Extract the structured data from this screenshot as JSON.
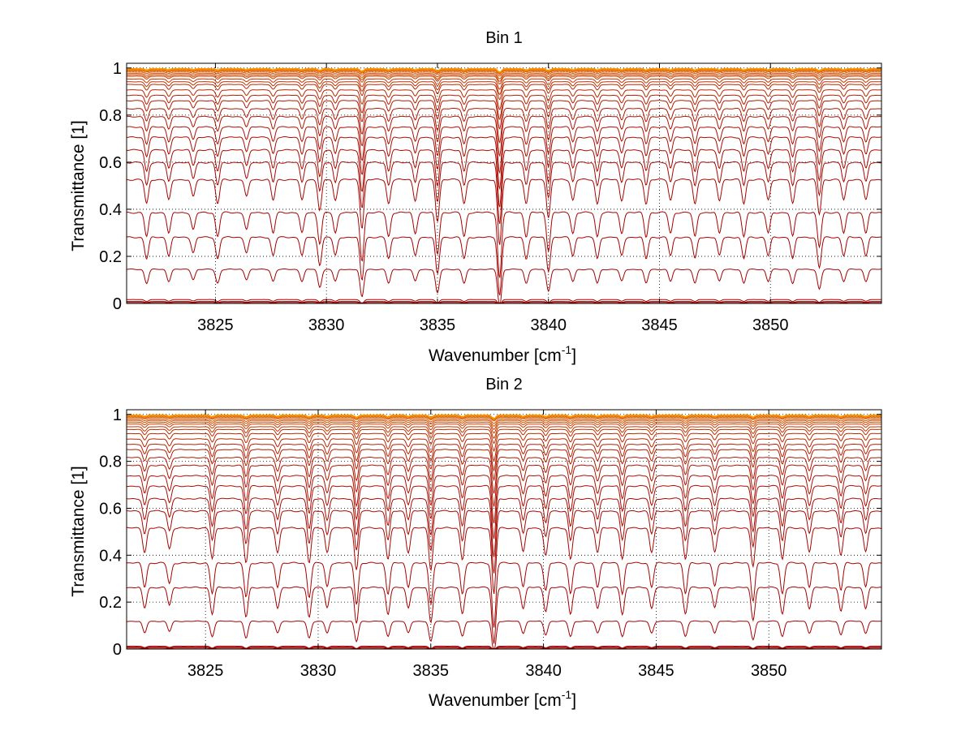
{
  "chart_data": [
    {
      "type": "line",
      "title": "Bin 1",
      "xlabel": "Wavenumber [cm",
      "xlabel_sup": "-1",
      "xlabel_close": "]",
      "ylabel": "Transmittance [1]",
      "xlim": [
        3821,
        3855
      ],
      "ylim": [
        0,
        1
      ],
      "xticks": [
        3825,
        3830,
        3835,
        3840,
        3845,
        3850
      ],
      "xtick_labels": [
        "3825",
        "3830",
        "3835",
        "3840",
        "3845",
        "3850"
      ],
      "yticks": [
        0,
        0.2,
        0.4,
        0.6,
        0.8,
        1
      ],
      "ytick_labels": [
        "0",
        "0.2",
        "0.4",
        "0.6",
        "0.8",
        "1"
      ],
      "grid": true,
      "series_count": 30,
      "baseline_levels": [
        0.005,
        0.01,
        0.02,
        0.17,
        0.32,
        0.43,
        0.57,
        0.64,
        0.69,
        0.74,
        0.78,
        0.82,
        0.85,
        0.88,
        0.9,
        0.92,
        0.94,
        0.95,
        0.96,
        0.97,
        0.975,
        0.98,
        0.985,
        0.99,
        0.993,
        0.995,
        0.997,
        0.998,
        0.999,
        1.0
      ],
      "absorption_lines": [
        {
          "x": 3821.9,
          "depth": 0.35
        },
        {
          "x": 3822.9,
          "depth": 0.3
        },
        {
          "x": 3824.0,
          "depth": 0.25
        },
        {
          "x": 3825.1,
          "depth": 0.35
        },
        {
          "x": 3826.4,
          "depth": 0.25
        },
        {
          "x": 3827.6,
          "depth": 0.3
        },
        {
          "x": 3828.9,
          "depth": 0.3
        },
        {
          "x": 3829.7,
          "depth": 0.45
        },
        {
          "x": 3830.4,
          "depth": 0.3
        },
        {
          "x": 3831.6,
          "depth": 0.7
        },
        {
          "x": 3832.8,
          "depth": 0.35
        },
        {
          "x": 3834.0,
          "depth": 0.3
        },
        {
          "x": 3835.0,
          "depth": 0.6
        },
        {
          "x": 3836.2,
          "depth": 0.35
        },
        {
          "x": 3837.8,
          "depth": 0.95
        },
        {
          "x": 3839.0,
          "depth": 0.35
        },
        {
          "x": 3840.0,
          "depth": 0.55
        },
        {
          "x": 3841.1,
          "depth": 0.3
        },
        {
          "x": 3842.2,
          "depth": 0.35
        },
        {
          "x": 3843.3,
          "depth": 0.3
        },
        {
          "x": 3844.4,
          "depth": 0.35
        },
        {
          "x": 3845.5,
          "depth": 0.3
        },
        {
          "x": 3846.6,
          "depth": 0.35
        },
        {
          "x": 3847.7,
          "depth": 0.3
        },
        {
          "x": 3848.8,
          "depth": 0.35
        },
        {
          "x": 3849.9,
          "depth": 0.3
        },
        {
          "x": 3851.0,
          "depth": 0.35
        },
        {
          "x": 3852.2,
          "depth": 0.5
        },
        {
          "x": 3853.3,
          "depth": 0.3
        },
        {
          "x": 3854.3,
          "depth": 0.3
        }
      ],
      "colors": {
        "low": "#a50000",
        "high": "#ff9a00"
      }
    },
    {
      "type": "line",
      "title": "Bin 2",
      "xlabel": "Wavenumber [cm",
      "xlabel_sup": "-1",
      "xlabel_close": "]",
      "ylabel": "Transmittance [1]",
      "xlim": [
        3821.5,
        3855
      ],
      "ylim": [
        0,
        1
      ],
      "xticks": [
        3825,
        3830,
        3835,
        3840,
        3845,
        3850
      ],
      "xtick_labels": [
        "3825",
        "3830",
        "3835",
        "3840",
        "3845",
        "3850"
      ],
      "yticks": [
        0,
        0.2,
        0.4,
        0.6,
        0.8,
        1
      ],
      "ytick_labels": [
        "0",
        "0.2",
        "0.4",
        "0.6",
        "0.8",
        "1"
      ],
      "grid": true,
      "series_count": 30,
      "baseline_levels": [
        0.005,
        0.01,
        0.015,
        0.14,
        0.3,
        0.41,
        0.56,
        0.63,
        0.68,
        0.73,
        0.77,
        0.81,
        0.84,
        0.87,
        0.89,
        0.91,
        0.93,
        0.945,
        0.955,
        0.965,
        0.972,
        0.978,
        0.983,
        0.988,
        0.992,
        0.995,
        0.997,
        0.998,
        0.999,
        1.0
      ],
      "absorption_lines": [
        {
          "x": 3822.3,
          "depth": 0.35
        },
        {
          "x": 3823.4,
          "depth": 0.3
        },
        {
          "x": 3825.3,
          "depth": 0.45
        },
        {
          "x": 3826.8,
          "depth": 0.5
        },
        {
          "x": 3828.2,
          "depth": 0.35
        },
        {
          "x": 3829.6,
          "depth": 0.5
        },
        {
          "x": 3830.4,
          "depth": 0.35
        },
        {
          "x": 3831.7,
          "depth": 0.6
        },
        {
          "x": 3833.1,
          "depth": 0.45
        },
        {
          "x": 3834.0,
          "depth": 0.35
        },
        {
          "x": 3835.0,
          "depth": 0.6
        },
        {
          "x": 3836.4,
          "depth": 0.45
        },
        {
          "x": 3837.8,
          "depth": 0.95
        },
        {
          "x": 3839.1,
          "depth": 0.35
        },
        {
          "x": 3840.1,
          "depth": 0.4
        },
        {
          "x": 3841.2,
          "depth": 0.45
        },
        {
          "x": 3842.4,
          "depth": 0.35
        },
        {
          "x": 3843.5,
          "depth": 0.45
        },
        {
          "x": 3844.8,
          "depth": 0.35
        },
        {
          "x": 3846.3,
          "depth": 0.45
        },
        {
          "x": 3847.6,
          "depth": 0.35
        },
        {
          "x": 3849.3,
          "depth": 0.55
        },
        {
          "x": 3850.6,
          "depth": 0.45
        },
        {
          "x": 3851.8,
          "depth": 0.35
        },
        {
          "x": 3853.2,
          "depth": 0.4
        },
        {
          "x": 3854.3,
          "depth": 0.35
        }
      ],
      "colors": {
        "low": "#a50000",
        "high": "#ff9a00"
      }
    }
  ]
}
